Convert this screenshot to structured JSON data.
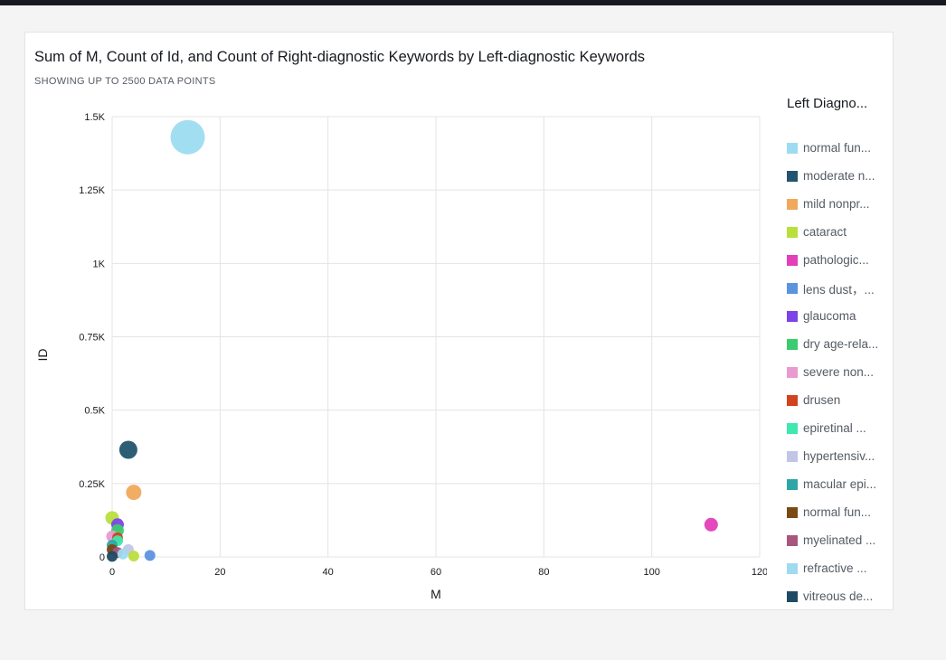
{
  "card": {
    "title": "Sum of M, Count of Id, and Count of Right-diagnostic Keywords by Left-diagnostic Keywords",
    "subtitle": "SHOWING UP TO 2500 DATA POINTS"
  },
  "legend": {
    "title": "Left Diagno...",
    "items": [
      {
        "label": "normal fun...",
        "color": "#9ddcf0"
      },
      {
        "label": "moderate n...",
        "color": "#22556f"
      },
      {
        "label": "mild nonpr...",
        "color": "#f0a95b"
      },
      {
        "label": "cataract",
        "color": "#b9df3d"
      },
      {
        "label": "pathologic...",
        "color": "#e23fb8"
      },
      {
        "label": "lens dust，...",
        "color": "#5c93e0"
      },
      {
        "label": "glaucoma",
        "color": "#7b43e8"
      },
      {
        "label": "dry age-rela...",
        "color": "#3ccb6e"
      },
      {
        "label": "severe non...",
        "color": "#e99ad1"
      },
      {
        "label": "drusen",
        "color": "#d2421d"
      },
      {
        "label": "epiretinal ...",
        "color": "#3fe8ad"
      },
      {
        "label": "hypertensiv...",
        "color": "#c2c5e8"
      },
      {
        "label": "macular epi...",
        "color": "#2fa6a6"
      },
      {
        "label": "normal fun...",
        "color": "#7a4a14"
      },
      {
        "label": "myelinated ...",
        "color": "#a9567d"
      },
      {
        "label": "refractive ...",
        "color": "#9fdaf0"
      },
      {
        "label": "vitreous de...",
        "color": "#1f4a63"
      }
    ]
  },
  "chart_data": {
    "type": "scatter",
    "title": "Sum of M, Count of Id, and Count of Right-diagnostic Keywords by Left-diagnostic Keywords",
    "subtitle": "SHOWING UP TO 2500 DATA POINTS",
    "xlabel": "M",
    "ylabel": "ID",
    "xlim": [
      0,
      120
    ],
    "ylim": [
      0,
      1500
    ],
    "x_ticks": [
      0,
      20,
      40,
      60,
      80,
      100,
      120
    ],
    "x_tick_labels": [
      "0",
      "20",
      "40",
      "60",
      "80",
      "100",
      "120"
    ],
    "y_ticks": [
      0,
      250,
      500,
      750,
      1000,
      1250,
      1500
    ],
    "y_tick_labels": [
      "0",
      "0.25K",
      "0.5K",
      "0.75K",
      "1K",
      "1.25K",
      "1.5K"
    ],
    "grid": true,
    "legend_position": "right",
    "size_encodes": "Count of Right-diagnostic Keywords",
    "points": [
      {
        "series": "normal fun...",
        "x": 14,
        "y": 1430,
        "size": 38,
        "color": "#9ddcf0"
      },
      {
        "series": "moderate n...",
        "x": 3,
        "y": 365,
        "size": 20,
        "color": "#22556f"
      },
      {
        "series": "mild nonpr...",
        "x": 4,
        "y": 220,
        "size": 17,
        "color": "#f0a95b"
      },
      {
        "series": "cataract",
        "x": 0,
        "y": 133,
        "size": 15,
        "color": "#b9df3d"
      },
      {
        "series": "pathologic...",
        "x": 111,
        "y": 110,
        "size": 15,
        "color": "#e23fb8"
      },
      {
        "series": "lens dust，...",
        "x": 7,
        "y": 5,
        "size": 12,
        "color": "#5c93e0"
      },
      {
        "series": "glaucoma",
        "x": 1,
        "y": 110,
        "size": 14,
        "color": "#7b43e8"
      },
      {
        "series": "dry age-rela...",
        "x": 1,
        "y": 90,
        "size": 14,
        "color": "#3ccb6e"
      },
      {
        "series": "severe non...",
        "x": 0,
        "y": 70,
        "size": 13,
        "color": "#e99ad1"
      },
      {
        "series": "drusen",
        "x": 1,
        "y": 65,
        "size": 12,
        "color": "#d2421d"
      },
      {
        "series": "epiretinal ...",
        "x": 1,
        "y": 55,
        "size": 12,
        "color": "#3fe8ad"
      },
      {
        "series": "hypertensiv...",
        "x": 3,
        "y": 25,
        "size": 12,
        "color": "#c2c5e8"
      },
      {
        "series": "macular epi...",
        "x": 0,
        "y": 40,
        "size": 12,
        "color": "#2fa6a6"
      },
      {
        "series": "normal fun...",
        "x": 0,
        "y": 25,
        "size": 12,
        "color": "#7a4a14"
      },
      {
        "series": "myelinated ...",
        "x": 1,
        "y": 15,
        "size": 12,
        "color": "#a9567d"
      },
      {
        "series": "refractive ...",
        "x": 2,
        "y": 10,
        "size": 12,
        "color": "#9fdaf0"
      },
      {
        "series": "cataract",
        "x": 4,
        "y": 3,
        "size": 12,
        "color": "#b9df3d"
      },
      {
        "series": "vitreous de...",
        "x": 0,
        "y": 2,
        "size": 12,
        "color": "#1f4a63"
      }
    ]
  }
}
